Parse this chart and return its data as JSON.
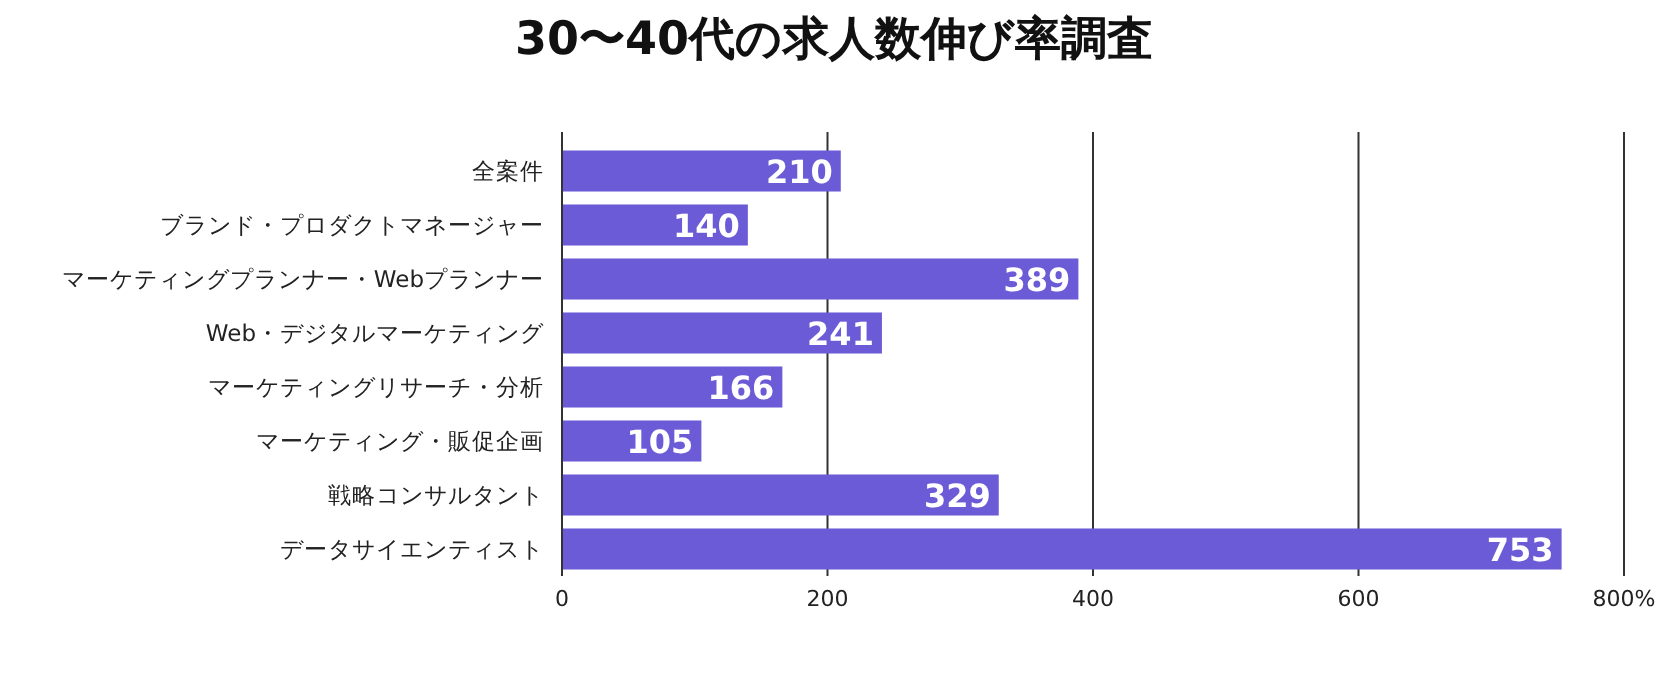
{
  "chart_data": {
    "type": "bar",
    "orientation": "horizontal",
    "title": "30〜40代の求人数伸び率調査",
    "categories": [
      "全案件",
      "ブランド・プロダクトマネージャー",
      "マーケティングプランナー・Webプランナー",
      "Web・デジタルマーケティング",
      "マーケティングリサーチ・分析",
      "マーケティング・販促企画",
      "戦略コンサルタント",
      "データサイエンティスト"
    ],
    "values": [
      210,
      140,
      389,
      241,
      166,
      105,
      329,
      753
    ],
    "color": "#6b5bd6",
    "data_labels": true,
    "xlim": [
      0,
      800
    ],
    "xticks": [
      0,
      200,
      400,
      600,
      {
        "value": 800,
        "label": "800%"
      }
    ],
    "grid": "x"
  }
}
